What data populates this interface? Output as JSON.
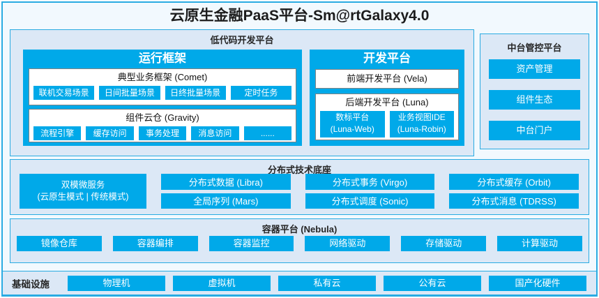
{
  "title": "云原生金融PaaS平台-Sm@rtGalaxy4.0",
  "colors": {
    "accent_blue": "#00a9e9",
    "border_cyan": "#29abe2",
    "section_bg": "#dce8f6",
    "page_bg": "#f2f9fe"
  },
  "lowcode": {
    "title": "低代码开发平台",
    "runtime": {
      "title": "运行框架",
      "comet": {
        "title": "典型业务框架 (Comet)",
        "items": [
          "联机交易场景",
          "日间批量场景",
          "日终批量场景",
          "定时任务"
        ]
      },
      "gravity": {
        "title": "组件云仓 (Gravity)",
        "items": [
          "流程引擎",
          "缓存访问",
          "事务处理",
          "消息访问",
          "......"
        ]
      }
    },
    "dev": {
      "title": "开发平台",
      "vela": "前端开发平台 (Vela)",
      "luna": {
        "title": "后端开发平台 (Luna)",
        "items": [
          {
            "line1": "数标平台",
            "line2": "(Luna-Web)"
          },
          {
            "line1": "业务视图IDE",
            "line2": "(Luna-Robin)"
          }
        ]
      }
    }
  },
  "mid_platform": {
    "title": "中台管控平台",
    "items": [
      "资产管理",
      "组件生态",
      "中台门户"
    ]
  },
  "distributed": {
    "title": "分布式技术底座",
    "dual": {
      "line1": "双模微服务",
      "line2": "(云原生模式 | 传统模式)"
    },
    "columns": [
      [
        "分布式数据 (Libra)",
        "全局序列 (Mars)"
      ],
      [
        "分布式事务 (Virgo)",
        "分布式调度 (Sonic)"
      ],
      [
        "分布式缓存 (Orbit)",
        "分布式消息 (TDRSS)"
      ]
    ]
  },
  "container_platform": {
    "title": "容器平台 (Nebula)",
    "items": [
      "镜像仓库",
      "容器编排",
      "容器监控",
      "网络驱动",
      "存储驱动",
      "计算驱动"
    ]
  },
  "infrastructure": {
    "label": "基础设施",
    "items": [
      "物理机",
      "虚拟机",
      "私有云",
      "公有云",
      "国产化硬件"
    ]
  }
}
